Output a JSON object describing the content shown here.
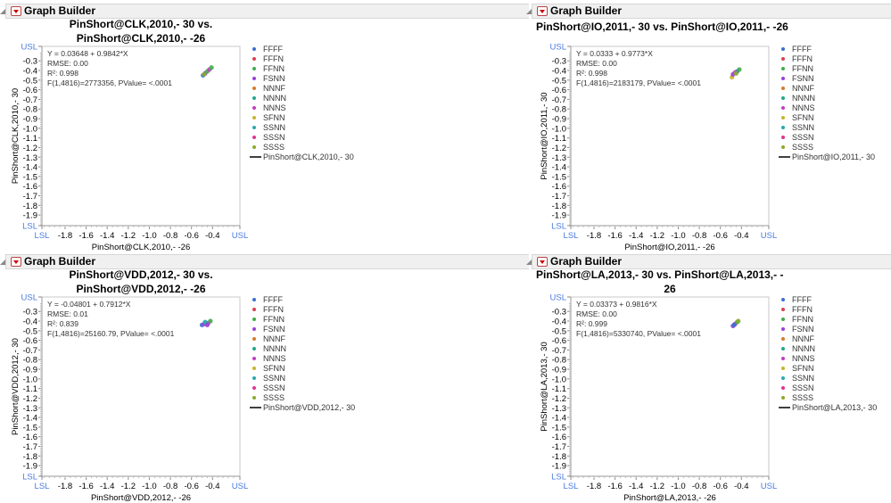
{
  "app": {
    "section_title": "Graph Builder"
  },
  "colors": {
    "spec_limit": "#4a7be0",
    "frame": "#c8c8c8",
    "text": "#333333"
  },
  "legend_categories": [
    {
      "label": "FFFF",
      "color": "#3b6fd1"
    },
    {
      "label": "FFFN",
      "color": "#d9434e"
    },
    {
      "label": "FFNN",
      "color": "#3fad4a"
    },
    {
      "label": "FSNN",
      "color": "#9c3fdc"
    },
    {
      "label": "NNNF",
      "color": "#d87a2a"
    },
    {
      "label": "NNNN",
      "color": "#22a88a"
    },
    {
      "label": "NNNS",
      "color": "#c03ec0"
    },
    {
      "label": "SFNN",
      "color": "#c8b52a"
    },
    {
      "label": "SSNN",
      "color": "#2aa9b3"
    },
    {
      "label": "SSSN",
      "color": "#e0358f"
    },
    {
      "label": "SSSS",
      "color": "#8bab2e"
    }
  ],
  "panels": [
    {
      "title_lines": [
        "PinShort@CLK,2010,- 30 vs.",
        "PinShort@CLK,2010,- -26"
      ],
      "title_align": "center",
      "fit_lines": [
        "Y = 0.03648 + 0.9842*X",
        "RMSE: 0.00",
        "R²: 0.998",
        "F(1,4816)=2773356, PValue= <.0001"
      ],
      "ylabel": "PinShort@CLK,2010,- 30",
      "xlabel": "PinShort@CLK,2010,- -26",
      "line_legend": "PinShort@CLK,2010,- 30"
    },
    {
      "title_lines": [
        "PinShort@IO,2011,- 30 vs. PinShort@IO,2011,- -26"
      ],
      "title_align": "left",
      "fit_lines": [
        "Y = 0.0333 + 0.9773*X",
        "RMSE: 0.00",
        "R²: 0.998",
        "F(1,4816)=2183179, PValue= <.0001"
      ],
      "ylabel": "PinShort@IO,2011,- 30",
      "xlabel": "PinShort@IO,2011,- -26",
      "line_legend": "PinShort@IO,2011,- 30"
    },
    {
      "title_lines": [
        "PinShort@VDD,2012,- 30 vs.",
        "PinShort@VDD,2012,- -26"
      ],
      "title_align": "center",
      "fit_lines": [
        "Y = -0.04801 + 0.7912*X",
        "RMSE: 0.01",
        "R²: 0.839",
        "F(1,4816)=25160.79, PValue= <.0001"
      ],
      "ylabel": "PinShort@VDD,2012,- 30",
      "xlabel": "PinShort@VDD,2012,- -26",
      "line_legend": "PinShort@VDD,2012,- 30"
    },
    {
      "title_lines": [
        "PinShort@LA,2013,- 30 vs. PinShort@LA,2013,- -",
        "26"
      ],
      "title_align": "left",
      "fit_lines": [
        "Y = 0.03373 + 0.9816*X",
        "RMSE: 0.00",
        "R²: 0.999",
        "F(1,4816)=5330740, PValue= <.0001"
      ],
      "ylabel": "PinShort@LA,2013,- 30",
      "xlabel": "PinShort@LA,2013,- -26",
      "line_legend": "PinShort@LA,2013,- 30"
    }
  ],
  "chart_data": [
    {
      "type": "scatter",
      "xlim": [
        -2.02,
        -0.14
      ],
      "ylim": [
        -2.01,
        -0.15
      ],
      "x_ticks": [
        "LSL",
        "-1.8",
        "-1.6",
        "-1.4",
        "-1.2",
        "-1.0",
        "-0.8",
        "-0.6",
        "-0.4",
        "USL"
      ],
      "y_ticks": [
        "USL",
        "-0.3",
        "-0.4",
        "-0.5",
        "-0.6",
        "-0.7",
        "-0.8",
        "-0.9",
        "-1.0",
        "-1.1",
        "-1.2",
        "-1.3",
        "-1.4",
        "-1.5",
        "-1.6",
        "-1.7",
        "-1.8",
        "-1.9",
        "LSL"
      ],
      "points": [
        [
          -0.49,
          -0.45,
          "FFFF"
        ],
        [
          -0.47,
          -0.43,
          "FSNN"
        ],
        [
          -0.45,
          -0.41,
          "FFNN"
        ],
        [
          -0.43,
          -0.39,
          "NNNS"
        ],
        [
          -0.41,
          -0.37,
          "FFNN"
        ],
        [
          -0.48,
          -0.44,
          "SSSS"
        ]
      ]
    },
    {
      "type": "scatter",
      "xlim": [
        -2.02,
        -0.14
      ],
      "ylim": [
        -2.01,
        -0.15
      ],
      "x_ticks": [
        "LSL",
        "-1.8",
        "-1.6",
        "-1.4",
        "-1.2",
        "-1.0",
        "-0.8",
        "-0.6",
        "-0.4",
        "USL"
      ],
      "y_ticks": [
        "USL",
        "-0.3",
        "-0.4",
        "-0.5",
        "-0.6",
        "-0.7",
        "-0.8",
        "-0.9",
        "-1.0",
        "-1.1",
        "-1.2",
        "-1.3",
        "-1.4",
        "-1.5",
        "-1.6",
        "-1.7",
        "-1.8",
        "-1.9",
        "LSL"
      ],
      "points": [
        [
          -0.49,
          -0.47,
          "SFNN"
        ],
        [
          -0.48,
          -0.44,
          "FSNN"
        ],
        [
          -0.46,
          -0.42,
          "NNNS"
        ],
        [
          -0.44,
          -0.41,
          "FFFF"
        ],
        [
          -0.42,
          -0.39,
          "FFNN"
        ],
        [
          -0.45,
          -0.43,
          "SSSS"
        ]
      ]
    },
    {
      "type": "scatter",
      "xlim": [
        -2.02,
        -0.14
      ],
      "ylim": [
        -2.01,
        -0.15
      ],
      "x_ticks": [
        "LSL",
        "-1.8",
        "-1.6",
        "-1.4",
        "-1.2",
        "-1.0",
        "-0.8",
        "-0.6",
        "-0.4",
        "USL"
      ],
      "y_ticks": [
        "USL",
        "-0.3",
        "-0.4",
        "-0.5",
        "-0.6",
        "-0.7",
        "-0.8",
        "-0.9",
        "-1.0",
        "-1.1",
        "-1.2",
        "-1.3",
        "-1.4",
        "-1.5",
        "-1.6",
        "-1.7",
        "-1.8",
        "-1.9",
        "LSL"
      ],
      "points": [
        [
          -0.5,
          -0.44,
          "FFFF"
        ],
        [
          -0.48,
          -0.43,
          "FSNN"
        ],
        [
          -0.46,
          -0.42,
          "FFNN"
        ],
        [
          -0.44,
          -0.42,
          "NNNS"
        ],
        [
          -0.42,
          -0.4,
          "FFNN"
        ],
        [
          -0.47,
          -0.41,
          "SSNN"
        ],
        [
          -0.45,
          -0.44,
          "FSNN"
        ]
      ]
    },
    {
      "type": "scatter",
      "xlim": [
        -2.02,
        -0.14
      ],
      "ylim": [
        -2.01,
        -0.15
      ],
      "x_ticks": [
        "LSL",
        "-1.8",
        "-1.6",
        "-1.4",
        "-1.2",
        "-1.0",
        "-0.8",
        "-0.6",
        "-0.4",
        "USL"
      ],
      "y_ticks": [
        "USL",
        "-0.3",
        "-0.4",
        "-0.5",
        "-0.6",
        "-0.7",
        "-0.8",
        "-0.9",
        "-1.0",
        "-1.1",
        "-1.2",
        "-1.3",
        "-1.4",
        "-1.5",
        "-1.6",
        "-1.7",
        "-1.8",
        "-1.9",
        "LSL"
      ],
      "points": [
        [
          -0.48,
          -0.45,
          "FSNN"
        ],
        [
          -0.46,
          -0.43,
          "NNNS"
        ],
        [
          -0.44,
          -0.41,
          "FFNN"
        ],
        [
          -0.43,
          -0.4,
          "SSSS"
        ],
        [
          -0.47,
          -0.44,
          "FFFF"
        ]
      ]
    }
  ]
}
